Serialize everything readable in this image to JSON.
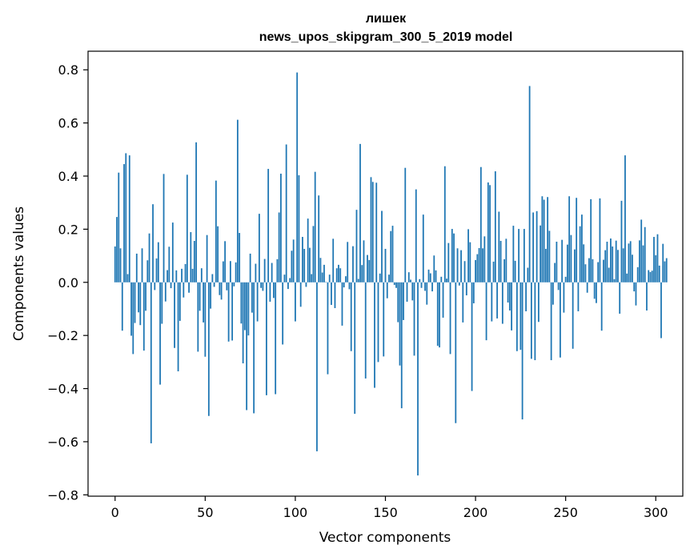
{
  "chart_data": {
    "type": "bar",
    "title": "лишек",
    "subtitle": "news_upos_skipgram_300_5_2019 model",
    "xlabel": "Vector components",
    "ylabel": "Components values",
    "xlim": [
      -15,
      315
    ],
    "ylim": [
      -0.805,
      0.87
    ],
    "xticks": [
      0,
      50,
      100,
      150,
      200,
      250,
      300
    ],
    "xtick_labels": [
      "0",
      "50",
      "100",
      "150",
      "200",
      "250",
      "300"
    ],
    "yticks": [
      -0.8,
      -0.6,
      -0.4,
      -0.2,
      0.0,
      0.2,
      0.4,
      0.6,
      0.8
    ],
    "ytick_labels": [
      "−0.8",
      "−0.6",
      "−0.4",
      "−0.2",
      "0.0",
      "0.2",
      "0.4",
      "0.6",
      "0.8"
    ],
    "grid": false,
    "values": [
      0.135,
      0.246,
      0.413,
      0.128,
      -0.182,
      0.445,
      0.486,
      0.031,
      0.478,
      -0.201,
      -0.27,
      -0.153,
      0.108,
      -0.113,
      -0.161,
      0.128,
      -0.257,
      -0.107,
      0.083,
      0.184,
      -0.606,
      0.294,
      -0.029,
      0.09,
      0.151,
      -0.385,
      -0.156,
      0.408,
      -0.072,
      0.046,
      0.134,
      -0.022,
      0.225,
      -0.247,
      0.045,
      -0.335,
      -0.145,
      0.051,
      -0.057,
      0.069,
      0.405,
      -0.039,
      0.189,
      0.051,
      0.156,
      0.527,
      -0.261,
      -0.107,
      0.053,
      -0.151,
      -0.28,
      0.178,
      -0.503,
      -0.099,
      0.031,
      -0.017,
      0.383,
      0.211,
      -0.048,
      -0.065,
      0.079,
      0.155,
      -0.03,
      -0.223,
      0.08,
      -0.219,
      -0.015,
      0.075,
      0.612,
      0.186,
      -0.155,
      -0.305,
      -0.18,
      -0.481,
      -0.2,
      0.108,
      -0.114,
      -0.493,
      0.07,
      -0.147,
      0.258,
      -0.021,
      -0.032,
      0.088,
      -0.425,
      0.427,
      -0.073,
      0.073,
      -0.059,
      -0.421,
      0.087,
      0.263,
      0.409,
      -0.234,
      0.029,
      0.519,
      -0.025,
      0.016,
      0.119,
      0.161,
      -0.147,
      0.79,
      0.403,
      -0.092,
      0.171,
      0.126,
      -0.017,
      0.24,
      0.13,
      0.031,
      0.212,
      0.416,
      -0.636,
      0.327,
      0.092,
      0.037,
      0.066,
      0.001,
      -0.346,
      0.029,
      -0.085,
      0.164,
      -0.097,
      0.053,
      0.066,
      0.053,
      -0.163,
      -0.019,
      0.023,
      0.152,
      -0.026,
      -0.259,
      0.136,
      -0.495,
      0.273,
      0.013,
      0.521,
      0.065,
      0.158,
      -0.362,
      0.103,
      0.084,
      0.396,
      0.378,
      -0.397,
      0.375,
      -0.3,
      0.033,
      0.269,
      -0.279,
      0.126,
      -0.06,
      0.029,
      0.193,
      0.213,
      -0.01,
      -0.021,
      -0.15,
      -0.313,
      -0.474,
      -0.142,
      0.431,
      -0.073,
      0.038,
      0.01,
      -0.068,
      -0.276,
      0.35,
      -0.727,
      0.012,
      -0.021,
      0.255,
      -0.032,
      -0.084,
      0.048,
      0.034,
      -0.034,
      0.101,
      0.045,
      -0.239,
      -0.245,
      0.021,
      -0.133,
      0.437,
      0.014,
      0.148,
      -0.27,
      0.201,
      0.184,
      -0.53,
      0.128,
      -0.012,
      0.121,
      -0.151,
      0.08,
      -0.049,
      0.2,
      0.151,
      -0.409,
      -0.079,
      0.084,
      0.106,
      0.129,
      0.434,
      0.128,
      0.173,
      -0.218,
      0.376,
      0.366,
      -0.147,
      0.078,
      0.418,
      -0.136,
      0.266,
      0.156,
      -0.156,
      0.087,
      0.164,
      -0.076,
      -0.106,
      -0.181,
      0.213,
      0.081,
      -0.259,
      0.201,
      -0.254,
      -0.516,
      0.201,
      -0.109,
      0.055,
      0.739,
      -0.288,
      0.263,
      -0.293,
      0.268,
      -0.149,
      0.214,
      0.324,
      0.311,
      0.126,
      0.321,
      0.194,
      -0.293,
      -0.084,
      0.073,
      0.153,
      -0.029,
      -0.283,
      0.16,
      -0.114,
      0.021,
      0.142,
      0.324,
      0.178,
      -0.25,
      0.124,
      0.318,
      -0.109,
      0.211,
      0.255,
      0.143,
      0.068,
      -0.039,
      0.091,
      0.313,
      0.087,
      -0.062,
      -0.078,
      0.076,
      0.316,
      -0.182,
      0.085,
      0.121,
      0.153,
      0.055,
      0.165,
      0.135,
      0.012,
      0.157,
      0.122,
      -0.118,
      0.307,
      0.128,
      0.478,
      0.033,
      0.146,
      0.155,
      0.104,
      -0.034,
      -0.087,
      0.057,
      0.158,
      0.236,
      0.139,
      0.208,
      -0.106,
      0.046,
      0.039,
      0.044,
      0.171,
      0.102,
      0.181,
      0.063,
      -0.21,
      0.145,
      0.079,
      0.091
    ]
  }
}
